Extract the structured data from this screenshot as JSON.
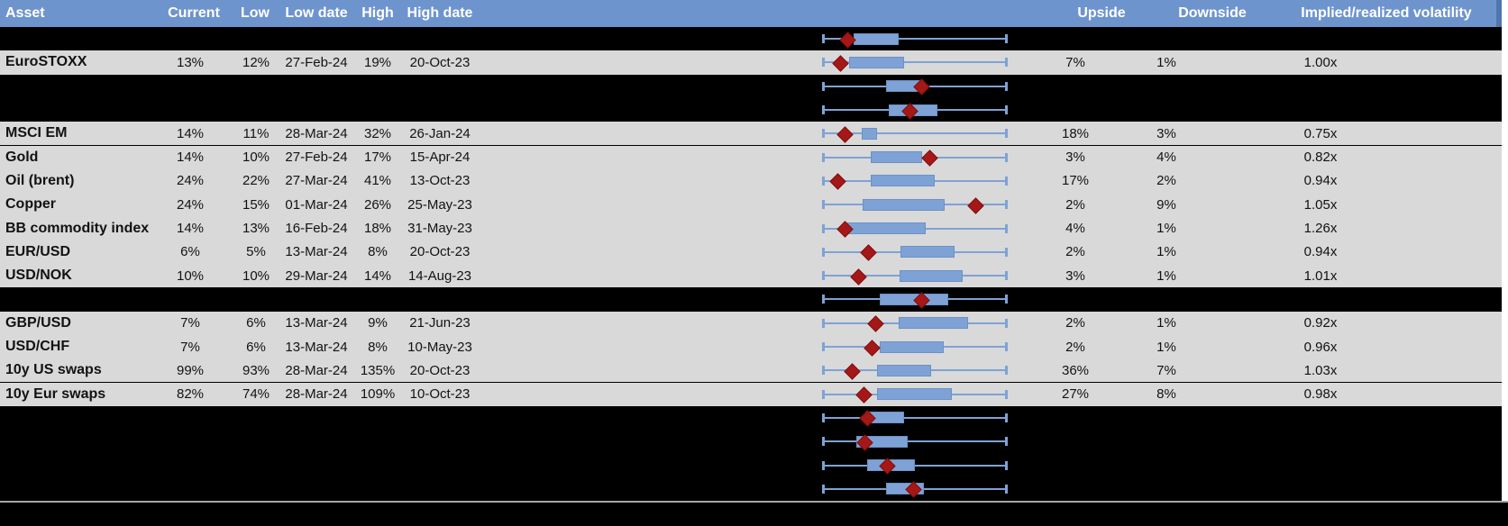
{
  "header": {
    "columns": [
      "Asset",
      "Current",
      "Low",
      "Low date",
      "High",
      "High date",
      "Upside",
      "Downside",
      "Implied/realized volatility"
    ]
  },
  "colors": {
    "header_bg": "#6E94CE",
    "header_edge": "#4F77AE",
    "header_text": "#FFFFFF",
    "row_gray": "#D9D9D9",
    "row_black": "#000000",
    "box_fill": "#7EA2D5",
    "box_border": "#6B91C6",
    "whisker": "#7EA2D5",
    "marker_fill": "#A51817",
    "marker_border": "#7E100F",
    "separator": "#A6A6A6"
  },
  "chart_data": {
    "type": "boxplot-range",
    "note": "Each row shows a normalized 1y volatility range: whiskers span low-to-high, blue box is interquartile range, red diamond is current level (fractions 0-1 of whisker span)"
  },
  "rows": [
    {
      "type": "hidden",
      "boxplot": {
        "box_start": 0.168,
        "box_end": 0.41,
        "marker": 0.132
      }
    },
    {
      "type": "data",
      "asset": "EuroSTOXX",
      "current": "13%",
      "low": "12%",
      "low_date": "27-Feb-24",
      "high": "19%",
      "high_date": "20-Oct-23",
      "upside": "7%",
      "downside": "1%",
      "implied_realized": "1.00x",
      "boxplot": {
        "box_start": 0.144,
        "box_end": 0.443,
        "marker": 0.095
      }
    },
    {
      "type": "hidden",
      "boxplot": {
        "box_start": 0.345,
        "box_end": 0.549,
        "marker": 0.533
      }
    },
    {
      "type": "hidden",
      "boxplot": {
        "box_start": 0.356,
        "box_end": 0.623,
        "marker": 0.472
      }
    },
    {
      "type": "data",
      "asset": "MSCI EM",
      "current": "14%",
      "low": "11%",
      "low_date": "28-Mar-24",
      "high": "32%",
      "high_date": "26-Jan-24",
      "upside": "18%",
      "downside": "3%",
      "implied_realized": "0.75x",
      "boxplot": {
        "box_start": 0.21,
        "box_end": 0.294,
        "marker": 0.118
      }
    },
    {
      "type": "data",
      "asset": "Gold",
      "current": "14%",
      "low": "10%",
      "low_date": "27-Feb-24",
      "high": "17%",
      "high_date": "15-Apr-24",
      "upside": "3%",
      "downside": "4%",
      "implied_realized": "0.82x",
      "boxplot": {
        "box_start": 0.26,
        "box_end": 0.539,
        "marker": 0.578
      }
    },
    {
      "type": "data",
      "asset": "Oil (brent)",
      "current": "24%",
      "low": "22%",
      "low_date": "27-Mar-24",
      "high": "41%",
      "high_date": "13-Oct-23",
      "upside": "17%",
      "downside": "2%",
      "implied_realized": "0.94x",
      "boxplot": {
        "box_start": 0.26,
        "box_end": 0.608,
        "marker": 0.078
      }
    },
    {
      "type": "data",
      "asset": "Copper",
      "current": "24%",
      "low": "15%",
      "low_date": "01-Mar-24",
      "high": "26%",
      "high_date": "25-May-23",
      "upside": "2%",
      "downside": "9%",
      "implied_realized": "1.05x",
      "boxplot": {
        "box_start": 0.216,
        "box_end": 0.662,
        "marker": 0.828
      }
    },
    {
      "type": "data",
      "asset": "BB commodity index",
      "current": "14%",
      "low": "13%",
      "low_date": "16-Feb-24",
      "high": "18%",
      "high_date": "31-May-23",
      "upside": "4%",
      "downside": "1%",
      "implied_realized": "1.26x",
      "boxplot": {
        "box_start": 0.132,
        "box_end": 0.559,
        "marker": 0.118
      }
    },
    {
      "type": "data",
      "asset": "EUR/USD",
      "current": "6%",
      "low": "5%",
      "low_date": "13-Mar-24",
      "high": "8%",
      "high_date": "20-Oct-23",
      "upside": "2%",
      "downside": "1%",
      "implied_realized": "0.94x",
      "boxplot": {
        "box_start": 0.422,
        "box_end": 0.716,
        "marker": 0.245
      }
    },
    {
      "type": "data",
      "asset": "USD/NOK",
      "current": "10%",
      "low": "10%",
      "low_date": "29-Mar-24",
      "high": "14%",
      "high_date": "14-Aug-23",
      "upside": "3%",
      "downside": "1%",
      "implied_realized": "1.01x",
      "boxplot": {
        "box_start": 0.417,
        "box_end": 0.76,
        "marker": 0.191
      }
    },
    {
      "type": "hidden",
      "boxplot": {
        "box_start": 0.309,
        "box_end": 0.681,
        "marker": 0.534
      }
    },
    {
      "type": "data",
      "asset": "GBP/USD",
      "current": "7%",
      "low": "6%",
      "low_date": "13-Mar-24",
      "high": "9%",
      "high_date": "21-Jun-23",
      "upside": "2%",
      "downside": "1%",
      "implied_realized": "0.92x",
      "boxplot": {
        "box_start": 0.412,
        "box_end": 0.789,
        "marker": 0.284
      }
    },
    {
      "type": "data",
      "asset": "USD/CHF",
      "current": "7%",
      "low": "6%",
      "low_date": "13-Mar-24",
      "high": "8%",
      "high_date": "10-May-23",
      "upside": "2%",
      "downside": "1%",
      "implied_realized": "0.96x",
      "boxplot": {
        "box_start": 0.309,
        "box_end": 0.657,
        "marker": 0.265
      }
    },
    {
      "type": "data",
      "asset": "10y US swaps",
      "current": "99%",
      "low": "93%",
      "low_date": "28-Mar-24",
      "high": "135%",
      "high_date": "20-Oct-23",
      "upside": "36%",
      "downside": "7%",
      "implied_realized": "1.03x",
      "boxplot": {
        "box_start": 0.294,
        "box_end": 0.588,
        "marker": 0.157
      }
    },
    {
      "type": "data",
      "asset": "10y Eur swaps",
      "current": "82%",
      "low": "74%",
      "low_date": "28-Mar-24",
      "high": "109%",
      "high_date": "10-Oct-23",
      "upside": "27%",
      "downside": "8%",
      "implied_realized": "0.98x",
      "boxplot": {
        "box_start": 0.294,
        "box_end": 0.701,
        "marker": 0.221
      }
    },
    {
      "type": "hidden",
      "boxplot": {
        "box_start": 0.23,
        "box_end": 0.44,
        "marker": 0.24
      }
    },
    {
      "type": "hidden",
      "boxplot": {
        "box_start": 0.18,
        "box_end": 0.46,
        "marker": 0.225
      }
    },
    {
      "type": "hidden",
      "boxplot": {
        "box_start": 0.24,
        "box_end": 0.5,
        "marker": 0.35
      }
    },
    {
      "type": "hidden",
      "boxplot": {
        "box_start": 0.343,
        "box_end": 0.55,
        "marker": 0.49
      }
    }
  ]
}
